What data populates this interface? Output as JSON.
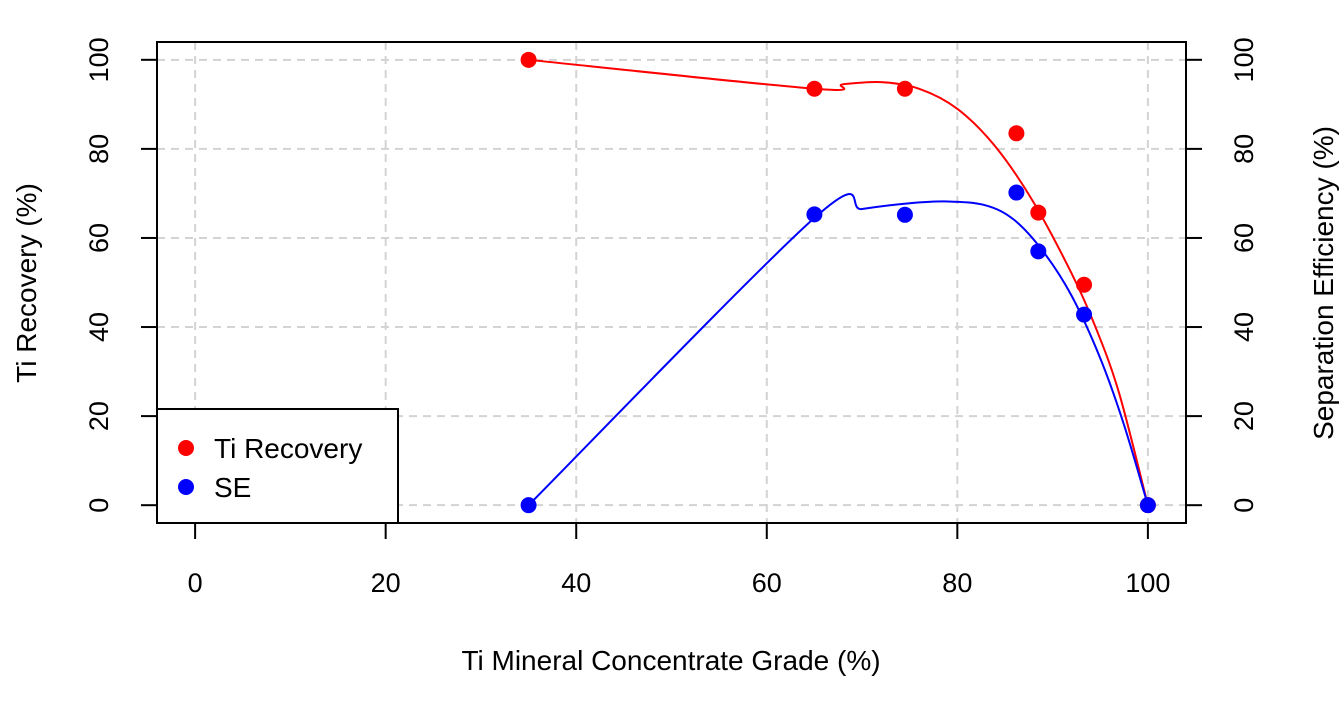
{
  "chart_data": {
    "type": "scatter",
    "xlabel": "Ti Mineral Concentrate Grade (%)",
    "ylabel_left": "Ti Recovery (%)",
    "ylabel_right": "Separation Efficiency (%)",
    "xlim": [
      -4,
      104
    ],
    "ylim": [
      -4,
      104
    ],
    "x_ticks": [
      0,
      20,
      40,
      60,
      80,
      100
    ],
    "y_ticks": [
      0,
      20,
      40,
      60,
      80,
      100
    ],
    "grid": true,
    "legend_position": "bottom-left",
    "series": [
      {
        "name": "Ti Recovery",
        "color": "#ff0000",
        "x": [
          35,
          65,
          74.5,
          86.2,
          88.5,
          93.3,
          100
        ],
        "y": [
          100,
          93.5,
          93.5,
          83.5,
          65.7,
          49.5,
          0
        ],
        "curve_points": [
          [
            35,
            100
          ],
          [
            65,
            93.5
          ],
          [
            68,
            94.5
          ],
          [
            72,
            95
          ],
          [
            76,
            93.5
          ],
          [
            80,
            89
          ],
          [
            84,
            80.5
          ],
          [
            88,
            68
          ],
          [
            92,
            52
          ],
          [
            94.5,
            40
          ],
          [
            97,
            25
          ],
          [
            100,
            0
          ]
        ]
      },
      {
        "name": "SE",
        "color": "#0000ff",
        "x": [
          35,
          65,
          74.5,
          86.2,
          88.5,
          93.3,
          100
        ],
        "y": [
          0,
          65.3,
          65.2,
          70.2,
          57,
          42.8,
          0
        ],
        "curve_points": [
          [
            35,
            0
          ],
          [
            65,
            64.5
          ],
          [
            70,
            66.5
          ],
          [
            75,
            67.8
          ],
          [
            79,
            68.2
          ],
          [
            83,
            67.3
          ],
          [
            86,
            64
          ],
          [
            89,
            57
          ],
          [
            92,
            47
          ],
          [
            95,
            33
          ],
          [
            97.5,
            18
          ],
          [
            100,
            0
          ]
        ]
      }
    ]
  }
}
